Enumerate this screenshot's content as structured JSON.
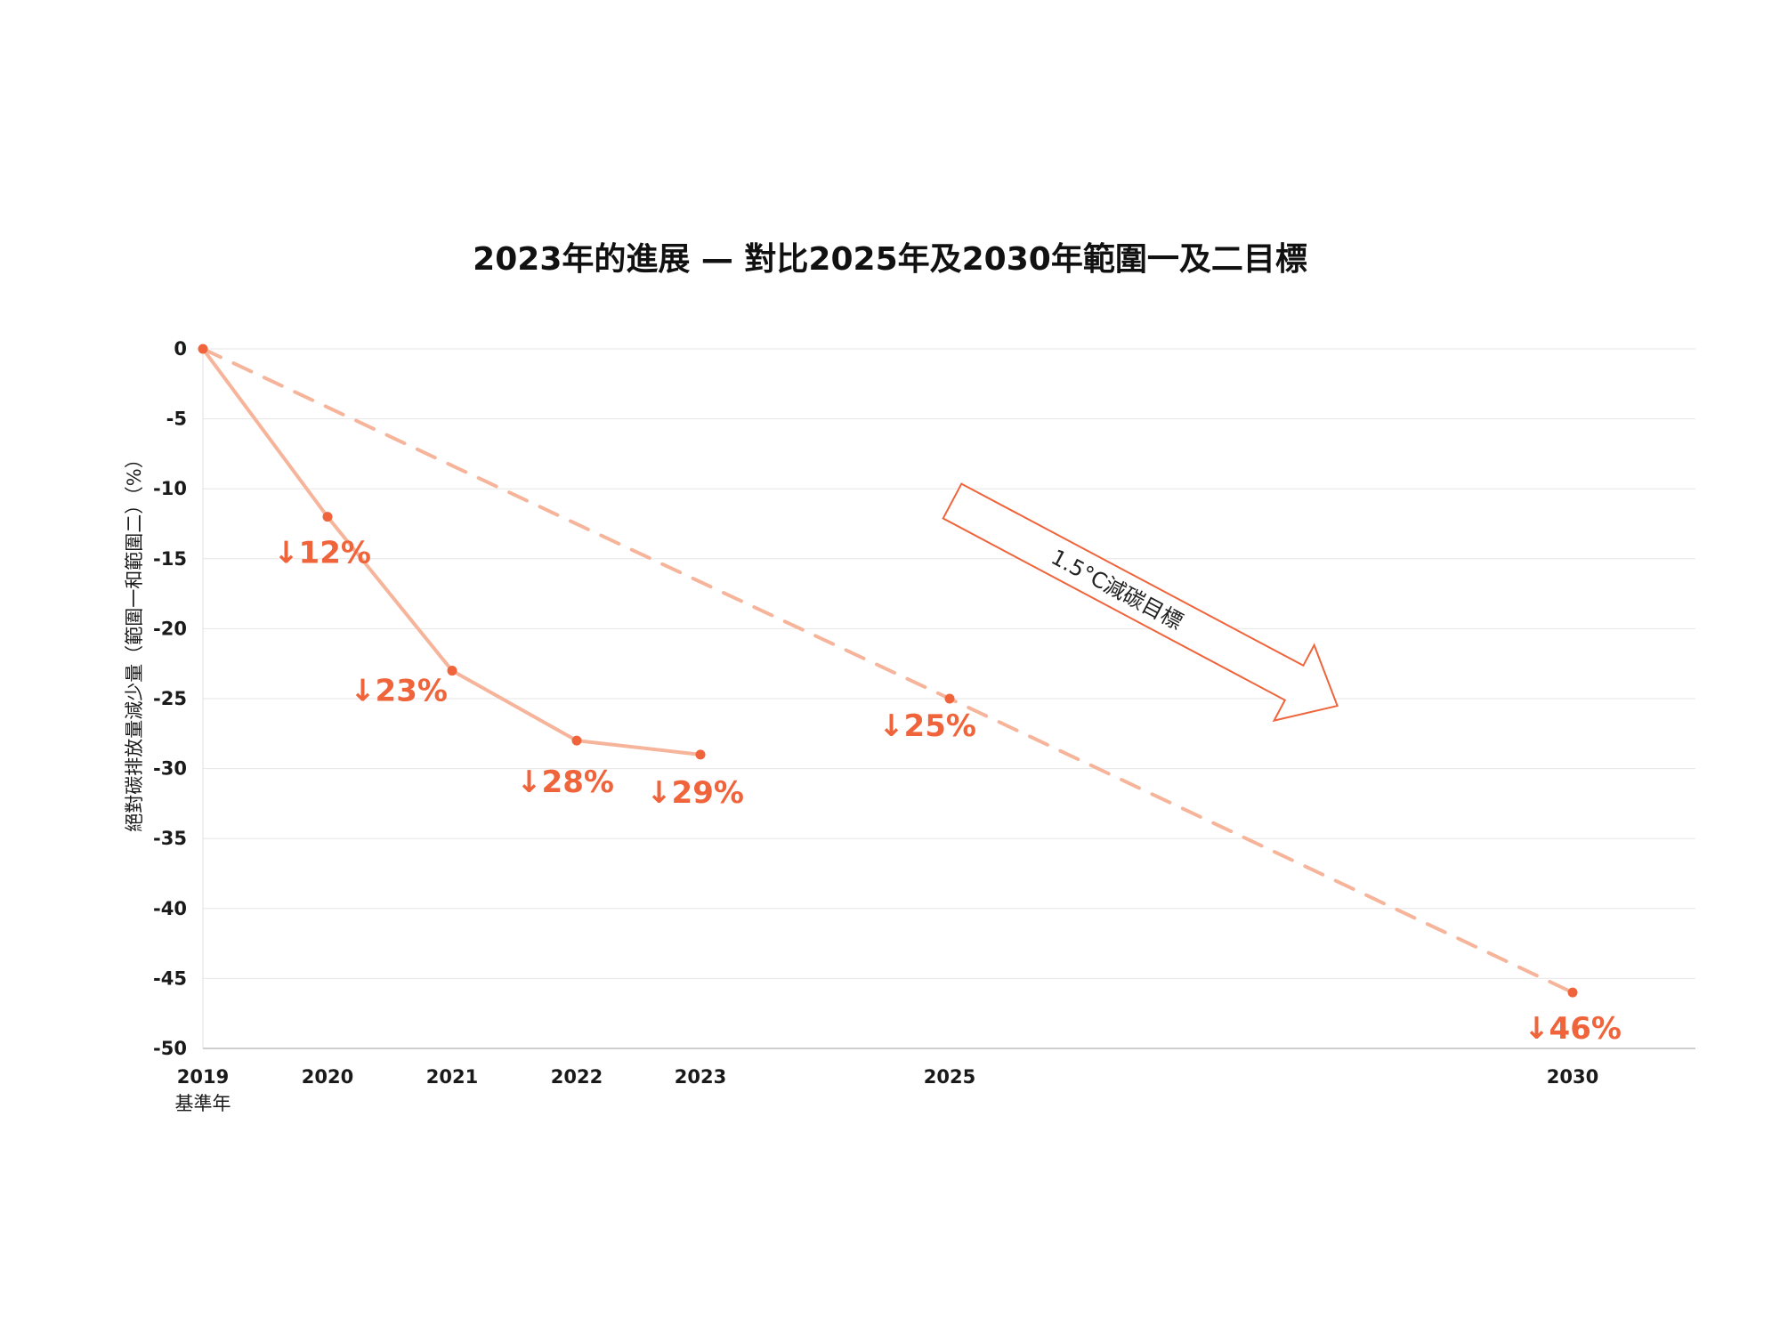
{
  "chart_data": {
    "type": "line",
    "title": "2023年的進展 — 對比2025年及2030年範圍一及二目標",
    "ylabel": "絕對碳排放量減少量（範圍一和範圍二）（%）",
    "xlabel": "",
    "ylim": [
      -50,
      0
    ],
    "yticks": [
      0,
      -5,
      -10,
      -15,
      -20,
      -25,
      -30,
      -35,
      -40,
      -45,
      -50
    ],
    "xlim": [
      2019,
      2030
    ],
    "x_ticks": [
      {
        "value": 2019,
        "label": "2019",
        "sublabel": "基準年"
      },
      {
        "value": 2020,
        "label": "2020"
      },
      {
        "value": 2021,
        "label": "2021"
      },
      {
        "value": 2022,
        "label": "2022"
      },
      {
        "value": 2023,
        "label": "2023"
      },
      {
        "value": 2025,
        "label": "2025"
      },
      {
        "value": 2030,
        "label": "2030"
      }
    ],
    "grid": true,
    "series": [
      {
        "style": "solid",
        "color": "#f6b49a",
        "points": [
          {
            "x": 2019,
            "y": 0,
            "label": ""
          },
          {
            "x": 2020,
            "y": -12,
            "label": "↓12%"
          },
          {
            "x": 2021,
            "y": -23,
            "label": "↓23%"
          },
          {
            "x": 2022,
            "y": -28,
            "label": "↓28%"
          },
          {
            "x": 2023,
            "y": -29,
            "label": "↓29%"
          }
        ]
      },
      {
        "style": "dashed",
        "color": "#f6b49a",
        "points": [
          {
            "x": 2019,
            "y": 0,
            "label": ""
          },
          {
            "x": 2025,
            "y": -25,
            "label": "↓25%"
          },
          {
            "x": 2030,
            "y": -46,
            "label": "↓46%"
          }
        ]
      }
    ],
    "annotation": {
      "text": "1.5°C減碳目標",
      "shape": "outlined-arrow",
      "color": "#f0643c"
    },
    "colors": {
      "marker": "#f0643c",
      "label": "#f0643c",
      "line": "#f6b49a",
      "grid": "#e6e6e6"
    }
  }
}
